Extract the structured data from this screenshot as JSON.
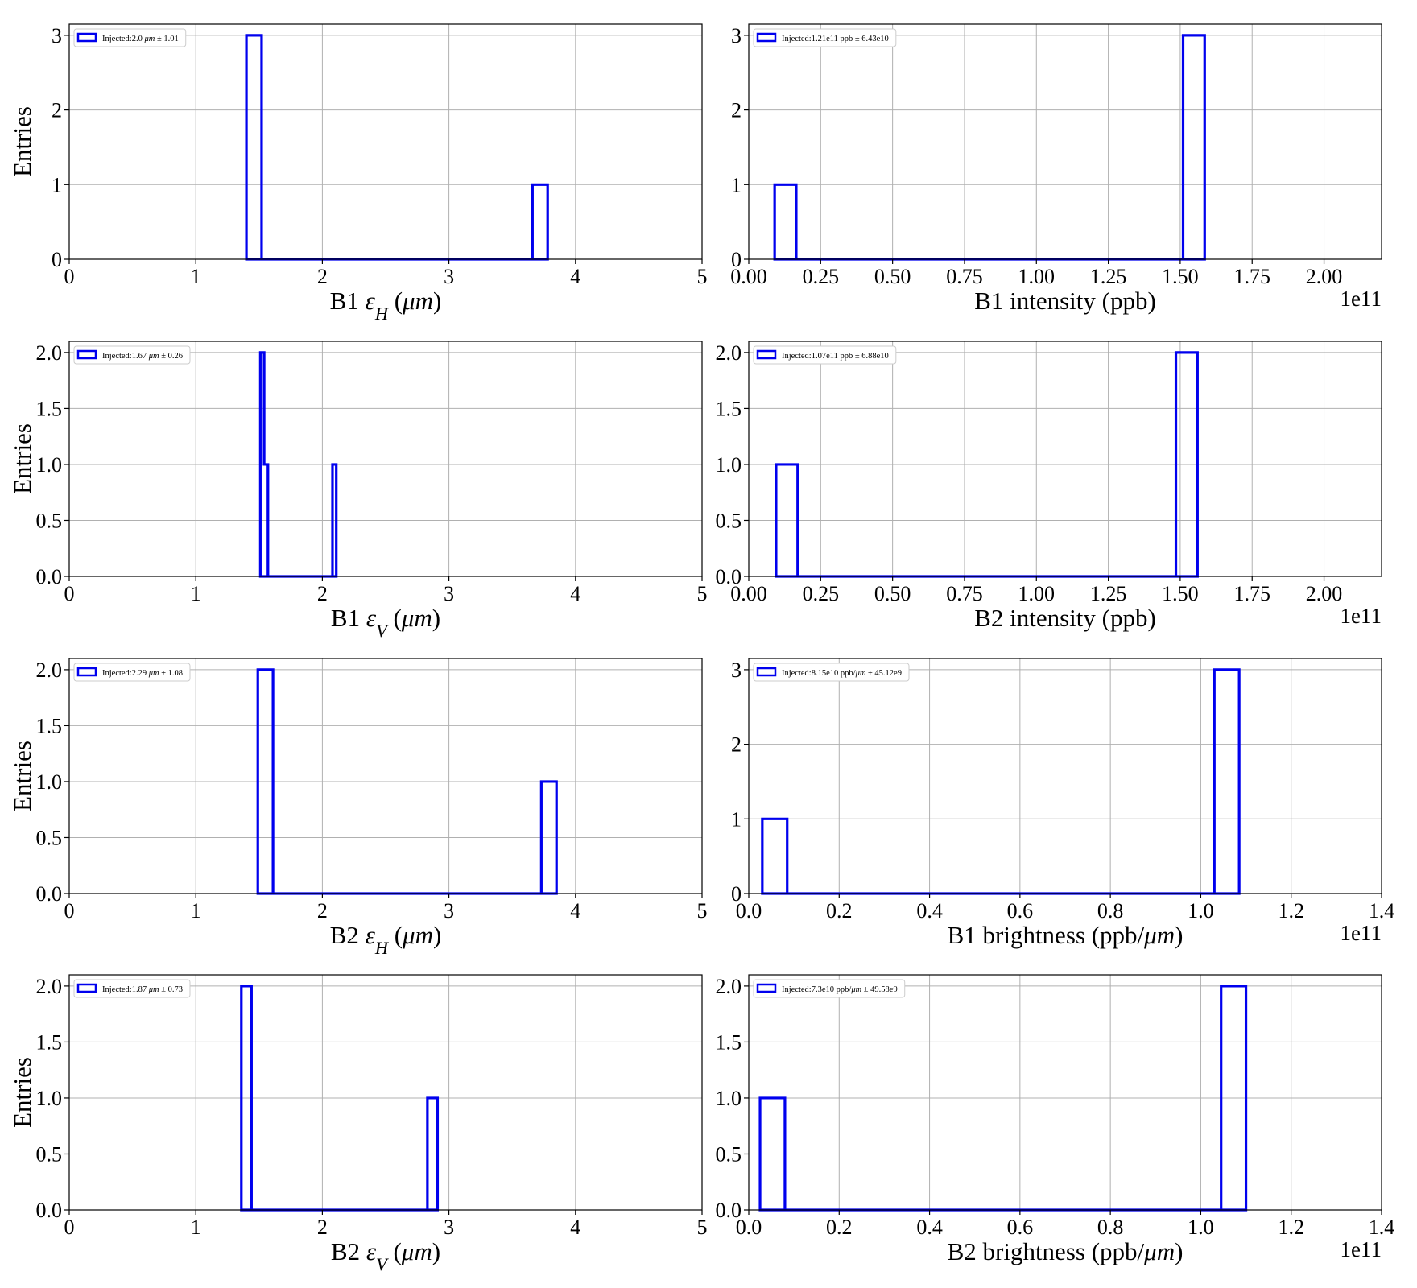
{
  "chart_data": [
    {
      "type": "bar",
      "xlabel": "B1 εH (μm)",
      "xlabel_parts": [
        {
          "t": "B1 "
        },
        {
          "t": "ε",
          "i": true
        },
        {
          "t": "H",
          "i": true,
          "sub": true
        },
        {
          "t": " ("
        },
        {
          "t": "μm",
          "i": true
        },
        {
          "t": ")"
        }
      ],
      "ylabel": "Entries",
      "legend": "Injected:2.0 μm ± 1.01",
      "legend_parts": [
        {
          "t": "Injected:2.0 "
        },
        {
          "t": "μm",
          "i": true
        },
        {
          "t": " ± 1.01"
        }
      ],
      "xlim": [
        0,
        5
      ],
      "ylim": [
        0,
        3.15
      ],
      "xticks": [
        0,
        1,
        2,
        3,
        4,
        5
      ],
      "xtick_labels": [
        "0",
        "1",
        "2",
        "3",
        "4",
        "5"
      ],
      "yticks": [
        0,
        1,
        2,
        3
      ],
      "ytick_labels": [
        "0",
        "1",
        "2",
        "3"
      ],
      "offset_text": "",
      "grid": true,
      "legend_position": "upper-left",
      "edges": [
        1.4,
        1.52,
        1.64,
        1.76,
        1.88,
        2.0,
        2.12,
        2.24,
        2.36,
        2.48,
        2.6,
        2.72,
        2.84,
        2.96,
        3.08,
        3.2,
        3.32,
        3.44,
        3.56,
        3.66,
        3.78
      ],
      "counts": [
        3,
        0,
        0,
        0,
        0,
        0,
        0,
        0,
        0,
        0,
        0,
        0,
        0,
        0,
        0,
        0,
        0,
        0,
        0,
        1
      ]
    },
    {
      "type": "bar",
      "xlabel": "B1 intensity (ppb)",
      "xlabel_parts": [
        {
          "t": "B1 intensity (ppb)"
        }
      ],
      "ylabel": "",
      "legend": "Injected:1.21e11 ppb ± 6.43e10",
      "legend_parts": [
        {
          "t": "Injected:1.21e11 ppb ± 6.43e10"
        }
      ],
      "xlim": [
        0,
        2.2
      ],
      "ylim": [
        0,
        3.15
      ],
      "xticks": [
        0,
        0.25,
        0.5,
        0.75,
        1.0,
        1.25,
        1.5,
        1.75,
        2.0
      ],
      "xtick_labels": [
        "0.00",
        "0.25",
        "0.50",
        "0.75",
        "1.00",
        "1.25",
        "1.50",
        "1.75",
        "2.00"
      ],
      "yticks": [
        0,
        1,
        2,
        3
      ],
      "ytick_labels": [
        "0",
        "1",
        "2",
        "3"
      ],
      "offset_text": "1e11",
      "grid": true,
      "legend_position": "upper-left",
      "edges": [
        0.09,
        0.165,
        1.51,
        1.585
      ],
      "counts": [
        1,
        0,
        3
      ]
    },
    {
      "type": "bar",
      "xlabel": "B1 εV (μm)",
      "xlabel_parts": [
        {
          "t": "B1 "
        },
        {
          "t": "ε",
          "i": true
        },
        {
          "t": "V",
          "i": true,
          "sub": true
        },
        {
          "t": " ("
        },
        {
          "t": "μm",
          "i": true
        },
        {
          "t": ")"
        }
      ],
      "ylabel": "Entries",
      "legend": "Injected:1.67 μm ± 0.26",
      "legend_parts": [
        {
          "t": "Injected:1.67 "
        },
        {
          "t": "μm",
          "i": true
        },
        {
          "t": " ± 0.26"
        }
      ],
      "xlim": [
        0,
        5
      ],
      "ylim": [
        0,
        2.1
      ],
      "xticks": [
        0,
        1,
        2,
        3,
        4,
        5
      ],
      "xtick_labels": [
        "0",
        "1",
        "2",
        "3",
        "4",
        "5"
      ],
      "yticks": [
        0,
        0.5,
        1.0,
        1.5,
        2.0
      ],
      "ytick_labels": [
        "0.0",
        "0.5",
        "1.0",
        "1.5",
        "2.0"
      ],
      "offset_text": "",
      "grid": true,
      "legend_position": "upper-left",
      "edges": [
        1.51,
        1.54,
        1.57,
        1.6,
        1.63,
        1.66,
        1.69,
        1.72,
        1.75,
        1.78,
        1.81,
        1.84,
        1.87,
        1.9,
        1.93,
        1.96,
        1.99,
        2.02,
        2.05,
        2.08,
        2.11
      ],
      "counts": [
        2,
        1,
        0,
        0,
        0,
        0,
        0,
        0,
        0,
        0,
        0,
        0,
        0,
        0,
        0,
        0,
        0,
        0,
        0,
        1
      ]
    },
    {
      "type": "bar",
      "xlabel": "B2 intensity (ppb)",
      "xlabel_parts": [
        {
          "t": "B2 intensity (ppb)"
        }
      ],
      "ylabel": "",
      "legend": "Injected:1.07e11 ppb ± 6.88e10",
      "legend_parts": [
        {
          "t": "Injected:1.07e11 ppb ± 6.88e10"
        }
      ],
      "xlim": [
        0,
        2.2
      ],
      "ylim": [
        0,
        2.1
      ],
      "xticks": [
        0,
        0.25,
        0.5,
        0.75,
        1.0,
        1.25,
        1.5,
        1.75,
        2.0
      ],
      "xtick_labels": [
        "0.00",
        "0.25",
        "0.50",
        "0.75",
        "1.00",
        "1.25",
        "1.50",
        "1.75",
        "2.00"
      ],
      "yticks": [
        0,
        0.5,
        1.0,
        1.5,
        2.0
      ],
      "ytick_labels": [
        "0.0",
        "0.5",
        "1.0",
        "1.5",
        "2.0"
      ],
      "offset_text": "1e11",
      "grid": true,
      "legend_position": "upper-left",
      "edges": [
        0.095,
        0.17,
        1.485,
        1.56
      ],
      "counts": [
        1,
        0,
        2
      ]
    },
    {
      "type": "bar",
      "xlabel": "B2 εH (μm)",
      "xlabel_parts": [
        {
          "t": "B2 "
        },
        {
          "t": "ε",
          "i": true
        },
        {
          "t": "H",
          "i": true,
          "sub": true
        },
        {
          "t": " ("
        },
        {
          "t": "μm",
          "i": true
        },
        {
          "t": ")"
        }
      ],
      "ylabel": "Entries",
      "legend": "Injected:2.29 μm ± 1.08",
      "legend_parts": [
        {
          "t": "Injected:2.29 "
        },
        {
          "t": "μm",
          "i": true
        },
        {
          "t": " ± 1.08"
        }
      ],
      "xlim": [
        0,
        5
      ],
      "ylim": [
        0,
        2.1
      ],
      "xticks": [
        0,
        1,
        2,
        3,
        4,
        5
      ],
      "xtick_labels": [
        "0",
        "1",
        "2",
        "3",
        "4",
        "5"
      ],
      "yticks": [
        0,
        0.5,
        1.0,
        1.5,
        2.0
      ],
      "ytick_labels": [
        "0.0",
        "0.5",
        "1.0",
        "1.5",
        "2.0"
      ],
      "offset_text": "",
      "grid": true,
      "legend_position": "upper-left",
      "edges": [
        1.49,
        1.61,
        1.73,
        1.85,
        1.97,
        2.09,
        2.21,
        2.33,
        2.45,
        2.57,
        2.69,
        2.81,
        2.93,
        3.05,
        3.17,
        3.29,
        3.41,
        3.53,
        3.65,
        3.73,
        3.85
      ],
      "counts": [
        2,
        0,
        0,
        0,
        0,
        0,
        0,
        0,
        0,
        0,
        0,
        0,
        0,
        0,
        0,
        0,
        0,
        0,
        0,
        1
      ]
    },
    {
      "type": "bar",
      "xlabel": "B1 brightness (ppb/μm)",
      "xlabel_parts": [
        {
          "t": "B1 brightness (ppb/"
        },
        {
          "t": "μm",
          "i": true
        },
        {
          "t": ")"
        }
      ],
      "ylabel": "",
      "legend": "Injected:8.15e10 ppb/μm ± 45.12e9",
      "legend_parts": [
        {
          "t": "Injected:8.15e10 ppb/"
        },
        {
          "t": "μm",
          "i": true
        },
        {
          "t": " ± 45.12e9"
        }
      ],
      "xlim": [
        0,
        1.4
      ],
      "ylim": [
        0,
        3.15
      ],
      "xticks": [
        0,
        0.2,
        0.4,
        0.6,
        0.8,
        1.0,
        1.2,
        1.4
      ],
      "xtick_labels": [
        "0.0",
        "0.2",
        "0.4",
        "0.6",
        "0.8",
        "1.0",
        "1.2",
        "1.4"
      ],
      "yticks": [
        0,
        1,
        2,
        3
      ],
      "ytick_labels": [
        "0",
        "1",
        "2",
        "3"
      ],
      "offset_text": "1e11",
      "grid": true,
      "legend_position": "upper-left",
      "edges": [
        0.03,
        0.085,
        1.03,
        1.085
      ],
      "counts": [
        1,
        0,
        3
      ]
    },
    {
      "type": "bar",
      "xlabel": "B2 εV (μm)",
      "xlabel_parts": [
        {
          "t": "B2 "
        },
        {
          "t": "ε",
          "i": true
        },
        {
          "t": "V",
          "i": true,
          "sub": true
        },
        {
          "t": " ("
        },
        {
          "t": "μm",
          "i": true
        },
        {
          "t": ")"
        }
      ],
      "ylabel": "Entries",
      "legend": "Injected:1.87 μm ± 0.73",
      "legend_parts": [
        {
          "t": "Injected:1.87 "
        },
        {
          "t": "μm",
          "i": true
        },
        {
          "t": " ± 0.73"
        }
      ],
      "xlim": [
        0,
        5
      ],
      "ylim": [
        0,
        2.1
      ],
      "xticks": [
        0,
        1,
        2,
        3,
        4,
        5
      ],
      "xtick_labels": [
        "0",
        "1",
        "2",
        "3",
        "4",
        "5"
      ],
      "yticks": [
        0,
        0.5,
        1.0,
        1.5,
        2.0
      ],
      "ytick_labels": [
        "0.0",
        "0.5",
        "1.0",
        "1.5",
        "2.0"
      ],
      "offset_text": "",
      "grid": true,
      "legend_position": "upper-left",
      "edges": [
        1.36,
        1.44,
        1.52,
        1.6,
        1.68,
        1.76,
        1.84,
        1.92,
        2.0,
        2.08,
        2.16,
        2.24,
        2.32,
        2.4,
        2.48,
        2.56,
        2.64,
        2.72,
        2.8,
        2.83,
        2.91
      ],
      "counts": [
        2,
        0,
        0,
        0,
        0,
        0,
        0,
        0,
        0,
        0,
        0,
        0,
        0,
        0,
        0,
        0,
        0,
        0,
        0,
        1
      ]
    },
    {
      "type": "bar",
      "xlabel": "B2 brightness (ppb/μm)",
      "xlabel_parts": [
        {
          "t": "B2 brightness (ppb/"
        },
        {
          "t": "μm",
          "i": true
        },
        {
          "t": ")"
        }
      ],
      "ylabel": "",
      "legend": "Injected:7.3e10 ppb/μm ± 49.58e9",
      "legend_parts": [
        {
          "t": "Injected:7.3e10 ppb/"
        },
        {
          "t": "μm",
          "i": true
        },
        {
          "t": " ± 49.58e9"
        }
      ],
      "xlim": [
        0,
        1.4
      ],
      "ylim": [
        0,
        2.1
      ],
      "xticks": [
        0,
        0.2,
        0.4,
        0.6,
        0.8,
        1.0,
        1.2,
        1.4
      ],
      "xtick_labels": [
        "0.0",
        "0.2",
        "0.4",
        "0.6",
        "0.8",
        "1.0",
        "1.2",
        "1.4"
      ],
      "yticks": [
        0,
        0.5,
        1.0,
        1.5,
        2.0
      ],
      "ytick_labels": [
        "0.0",
        "0.5",
        "1.0",
        "1.5",
        "2.0"
      ],
      "offset_text": "1e11",
      "grid": true,
      "legend_position": "upper-left",
      "edges": [
        0.025,
        0.08,
        1.045,
        1.1
      ],
      "counts": [
        1,
        0,
        2
      ]
    }
  ]
}
